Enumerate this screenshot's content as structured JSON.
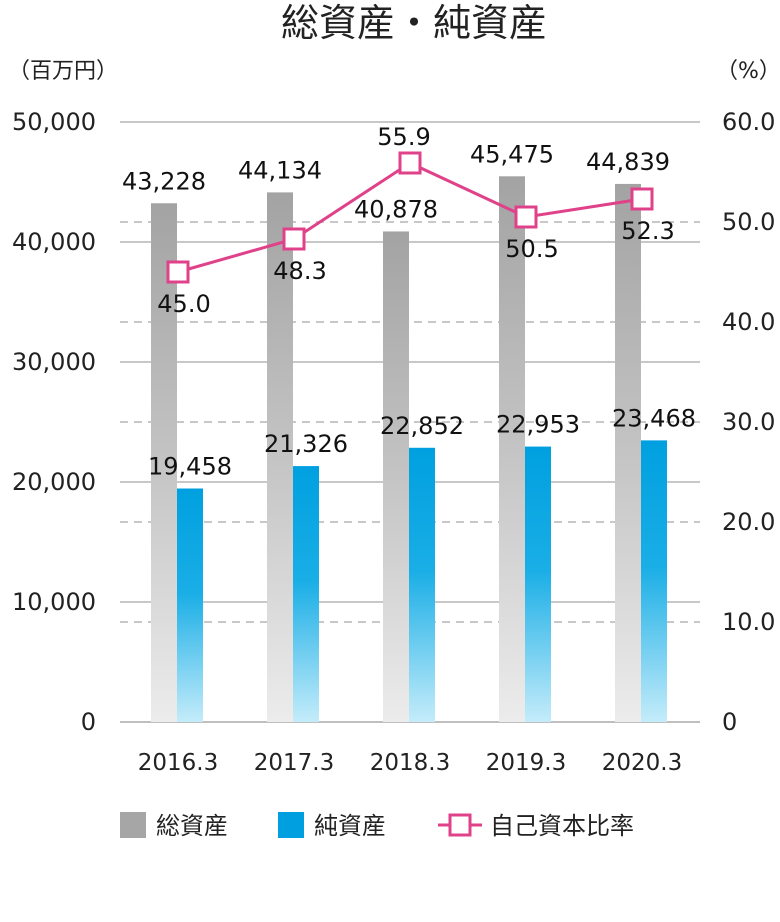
{
  "chart_data": {
    "type": "bar",
    "title": "総資産・純資産",
    "left_unit": "（百万円）",
    "right_unit": "（%）",
    "categories": [
      "2016.3",
      "2017.3",
      "2018.3",
      "2019.3",
      "2020.3"
    ],
    "left_axis": {
      "min": 0,
      "max": 50000,
      "ticks": [
        "0",
        "10,000",
        "20,000",
        "30,000",
        "40,000",
        "50,000"
      ]
    },
    "right_axis": {
      "min": 0,
      "max": 60,
      "ticks": [
        "0",
        "10.0",
        "20.0",
        "30.0",
        "40.0",
        "50.0",
        "60.0"
      ]
    },
    "series": [
      {
        "name": "総資産",
        "type": "bar",
        "axis": "left",
        "color": "#a6a6a6",
        "values": [
          43228,
          44134,
          40878,
          45475,
          44839
        ],
        "labels": [
          "43,228",
          "44,134",
          "40,878",
          "45,475",
          "44,839"
        ]
      },
      {
        "name": "純資産",
        "type": "bar",
        "axis": "left",
        "color": "#00a0e0",
        "values": [
          19458,
          21326,
          22852,
          22953,
          23468
        ],
        "labels": [
          "19,458",
          "21,326",
          "22,852",
          "22,953",
          "23,468"
        ]
      },
      {
        "name": "自己資本比率",
        "type": "line",
        "axis": "right",
        "color": "#e0428a",
        "values": [
          45.0,
          48.3,
          55.9,
          50.5,
          52.3
        ],
        "labels": [
          "45.0",
          "48.3",
          "55.9",
          "50.5",
          "52.3"
        ]
      }
    ],
    "grid": true,
    "legend": "bottom"
  }
}
